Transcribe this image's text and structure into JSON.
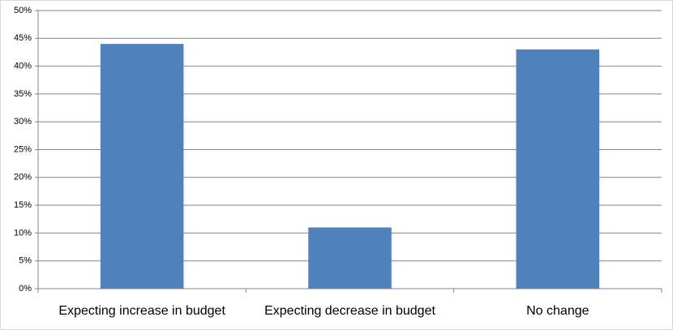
{
  "chart_data": {
    "type": "bar",
    "categories": [
      "Expecting increase in budget",
      "Expecting decrease in budget",
      "No change"
    ],
    "values": [
      44,
      11,
      43
    ],
    "color": "#4f81bd",
    "ylim": [
      0,
      50
    ],
    "yticks": [
      {
        "value": 0,
        "label": "0%"
      },
      {
        "value": 5,
        "label": "5%"
      },
      {
        "value": 10,
        "label": "10%"
      },
      {
        "value": 15,
        "label": "15%"
      },
      {
        "value": 20,
        "label": "20%"
      },
      {
        "value": 25,
        "label": "25%"
      },
      {
        "value": 30,
        "label": "30%"
      },
      {
        "value": 35,
        "label": "35%"
      },
      {
        "value": 40,
        "label": "40%"
      },
      {
        "value": 45,
        "label": "45%"
      },
      {
        "value": 50,
        "label": "50%"
      }
    ],
    "grid": true
  }
}
